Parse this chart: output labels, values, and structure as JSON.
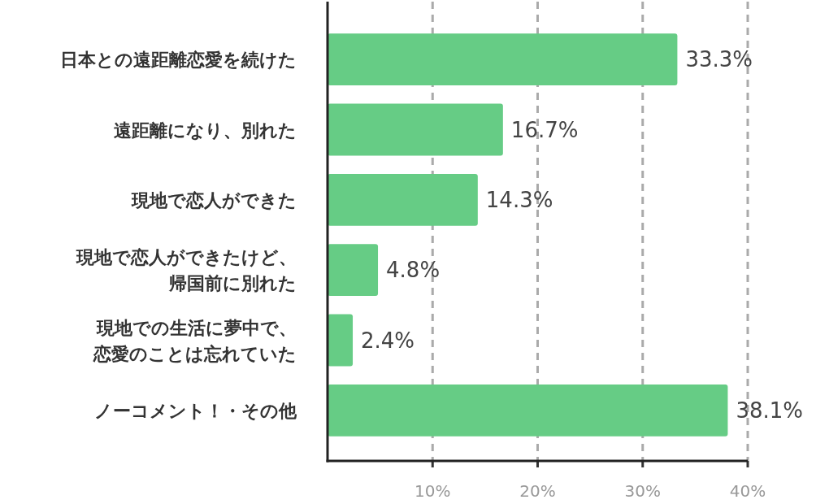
{
  "chart_data": {
    "type": "bar",
    "orientation": "horizontal",
    "categories": [
      "日本との遠距離恋愛を続けた",
      "遠距離になり、別れた",
      "現地で恋人ができた",
      "現地で恋人ができたけど、帰国前に別れた",
      "現地での生活に夢中で、恋愛のことは忘れていた",
      "ノーコメント！・その他"
    ],
    "values": [
      33.3,
      16.7,
      14.3,
      4.8,
      2.4,
      38.1
    ],
    "value_labels": [
      "33.3%",
      "16.7%",
      "14.3%",
      "4.8%",
      "2.4%",
      "38.1%"
    ],
    "color": "#66cc85",
    "xlim": [
      0,
      40
    ],
    "xticks": [
      {
        "value": 10,
        "label": "10%"
      },
      {
        "value": 20,
        "label": "20%"
      },
      {
        "value": 30,
        "label": "30%"
      },
      {
        "value": 40,
        "label": "40%"
      }
    ],
    "grid": "x"
  }
}
